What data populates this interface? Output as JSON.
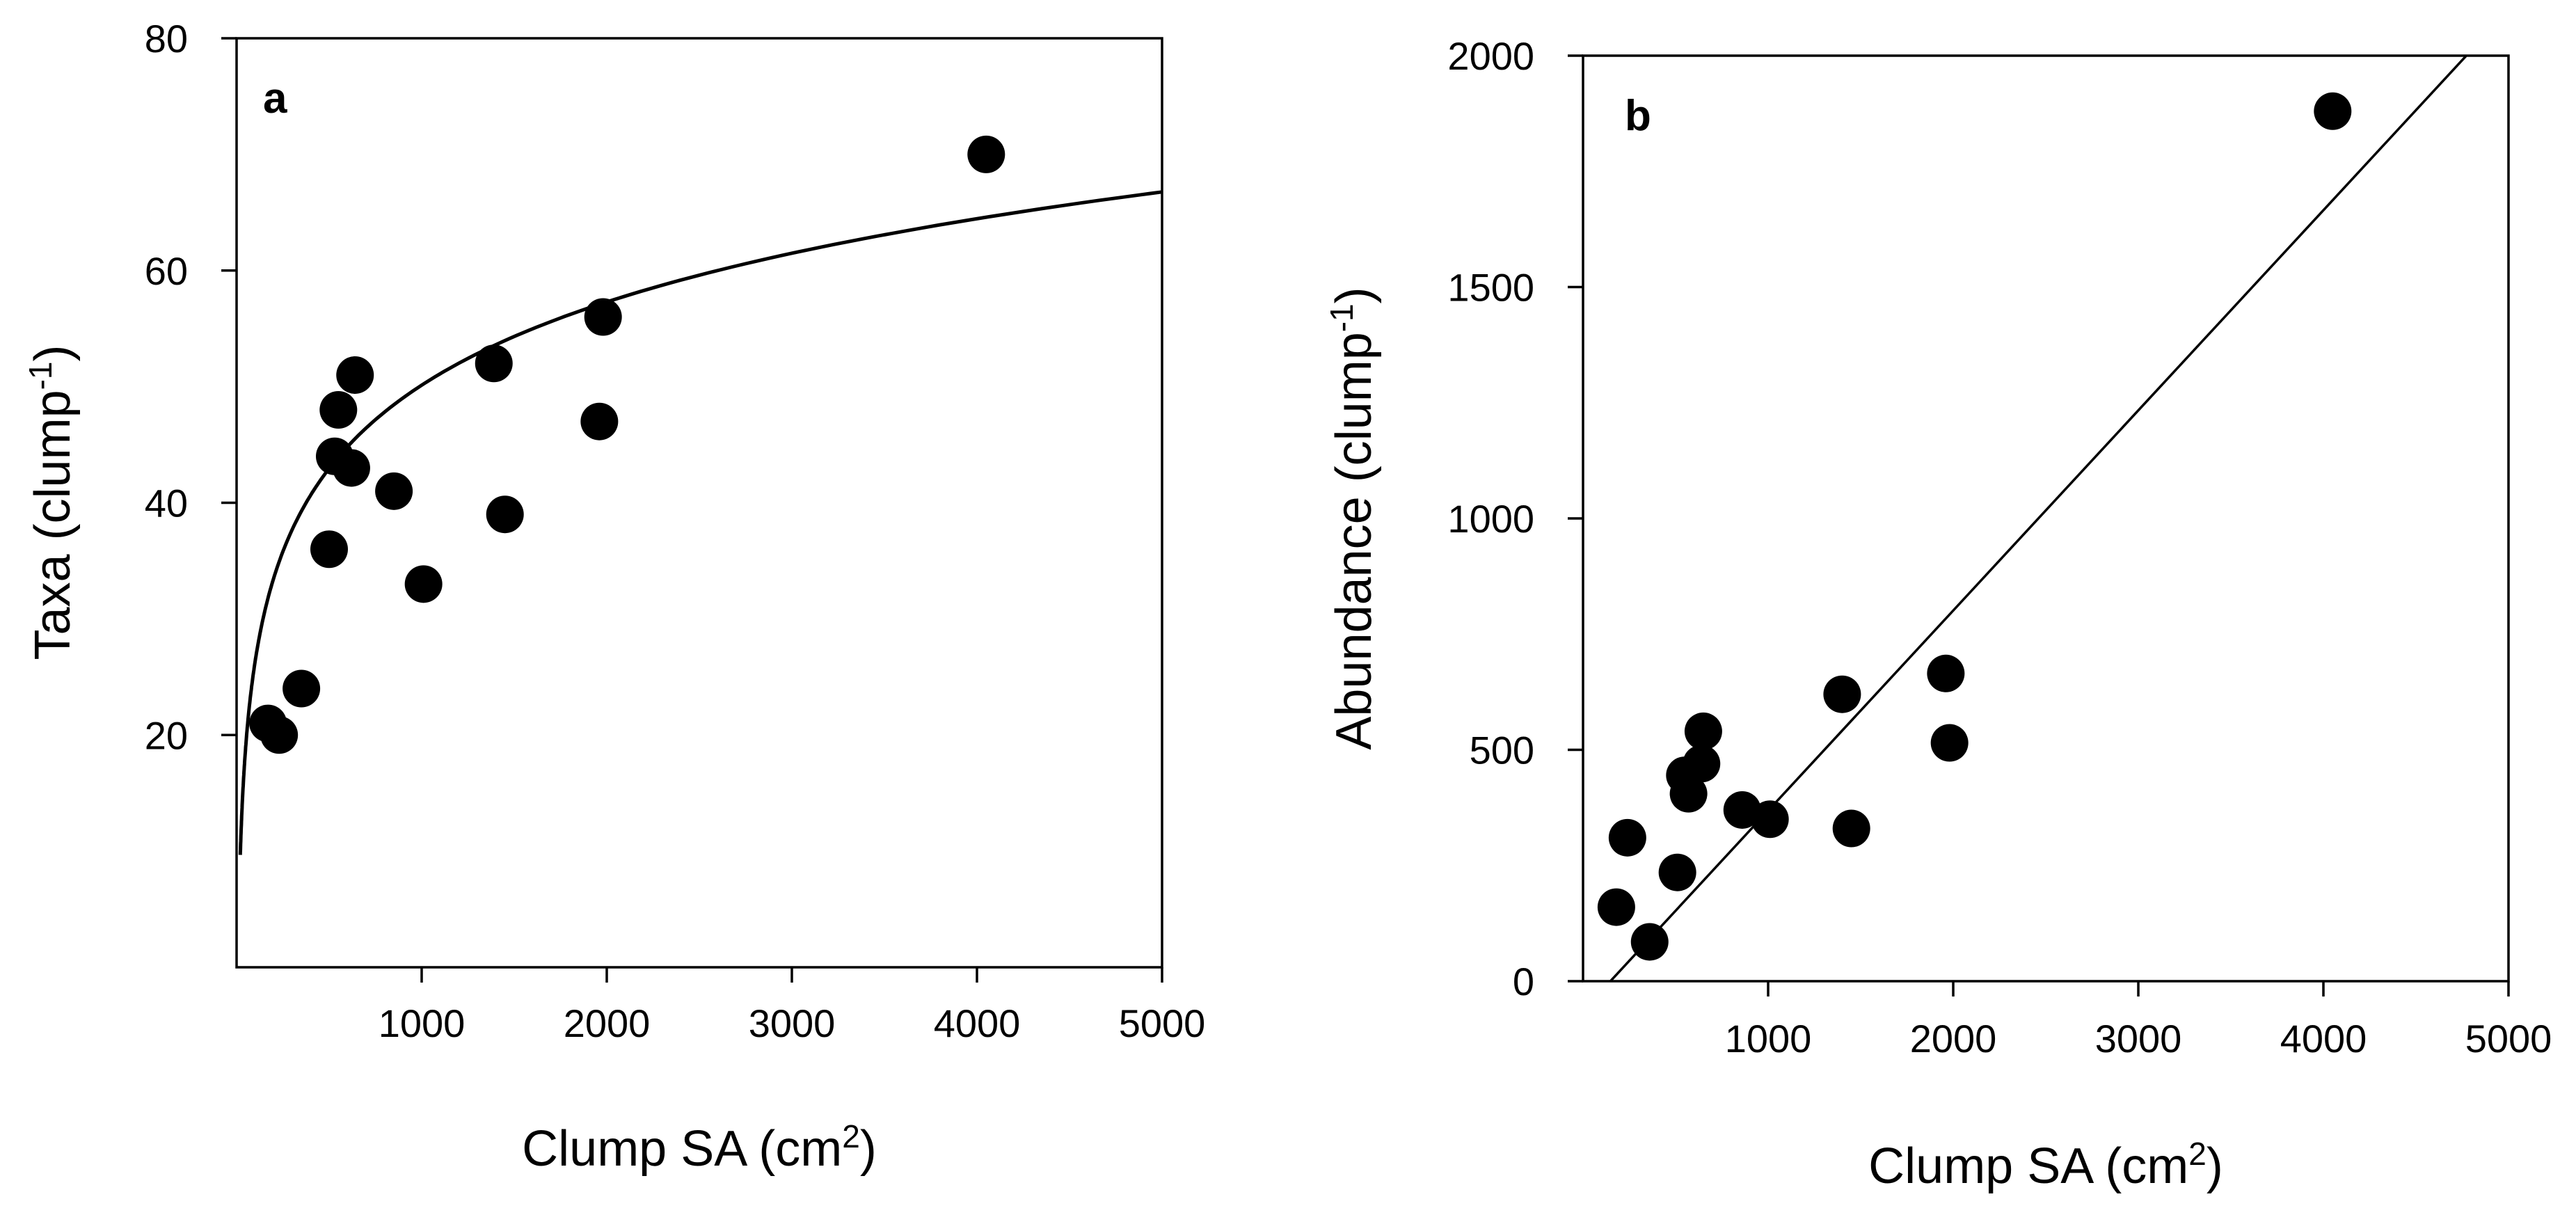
{
  "chart_data": [
    {
      "type": "scatter",
      "panel_label": "a",
      "xlabel": "Clump SA (cm",
      "xlabel_sup": "2",
      "xlabel_end": ")",
      "ylabel": "Taxa (clump",
      "ylabel_sup": "-1",
      "ylabel_end": ")",
      "xlim": [
        0,
        5000
      ],
      "ylim": [
        0,
        80
      ],
      "xticks": [
        1000,
        2000,
        3000,
        4000,
        5000
      ],
      "xtick_labels": [
        "1000",
        "2000",
        "3000",
        "4000",
        "5000"
      ],
      "yticks": [
        20,
        40,
        60,
        80
      ],
      "ytick_labels": [
        "20",
        "40",
        "60",
        "80"
      ],
      "points": [
        {
          "x": 170,
          "y": 21
        },
        {
          "x": 230,
          "y": 20
        },
        {
          "x": 350,
          "y": 24
        },
        {
          "x": 500,
          "y": 36
        },
        {
          "x": 530,
          "y": 44
        },
        {
          "x": 550,
          "y": 48
        },
        {
          "x": 620,
          "y": 43
        },
        {
          "x": 640,
          "y": 51
        },
        {
          "x": 850,
          "y": 41
        },
        {
          "x": 1010,
          "y": 33
        },
        {
          "x": 1390,
          "y": 52
        },
        {
          "x": 1450,
          "y": 39
        },
        {
          "x": 1960,
          "y": 47
        },
        {
          "x": 1980,
          "y": 56
        },
        {
          "x": 4050,
          "y": 70
        }
      ],
      "fit": {
        "form": "log",
        "a": -21.3,
        "b": 10.34,
        "x_start": 20,
        "x_end": 5000
      }
    },
    {
      "type": "scatter",
      "panel_label": "b",
      "xlabel": "Clump SA (cm",
      "xlabel_sup": "2",
      "xlabel_end": ")",
      "ylabel": "Abundance (clump",
      "ylabel_sup": "-1",
      "ylabel_end": ")",
      "xlim": [
        0,
        5000
      ],
      "ylim": [
        0,
        2000
      ],
      "xticks": [
        1000,
        2000,
        3000,
        4000,
        5000
      ],
      "xtick_labels": [
        "1000",
        "2000",
        "3000",
        "4000",
        "5000"
      ],
      "yticks": [
        0,
        500,
        1000,
        1500,
        2000
      ],
      "ytick_labels": [
        "0",
        "500",
        "1000",
        "1500",
        "2000"
      ],
      "points": [
        {
          "x": 180,
          "y": 160
        },
        {
          "x": 240,
          "y": 310
        },
        {
          "x": 360,
          "y": 85
        },
        {
          "x": 510,
          "y": 235
        },
        {
          "x": 550,
          "y": 445
        },
        {
          "x": 570,
          "y": 405
        },
        {
          "x": 640,
          "y": 470
        },
        {
          "x": 650,
          "y": 540
        },
        {
          "x": 860,
          "y": 370
        },
        {
          "x": 1010,
          "y": 350
        },
        {
          "x": 1400,
          "y": 620
        },
        {
          "x": 1450,
          "y": 330
        },
        {
          "x": 1960,
          "y": 665
        },
        {
          "x": 1980,
          "y": 515
        },
        {
          "x": 4050,
          "y": 1880
        }
      ],
      "fit": {
        "form": "linear",
        "slope": 0.4325,
        "intercept": -64,
        "x_start": 148,
        "x_end": 4772
      }
    }
  ]
}
